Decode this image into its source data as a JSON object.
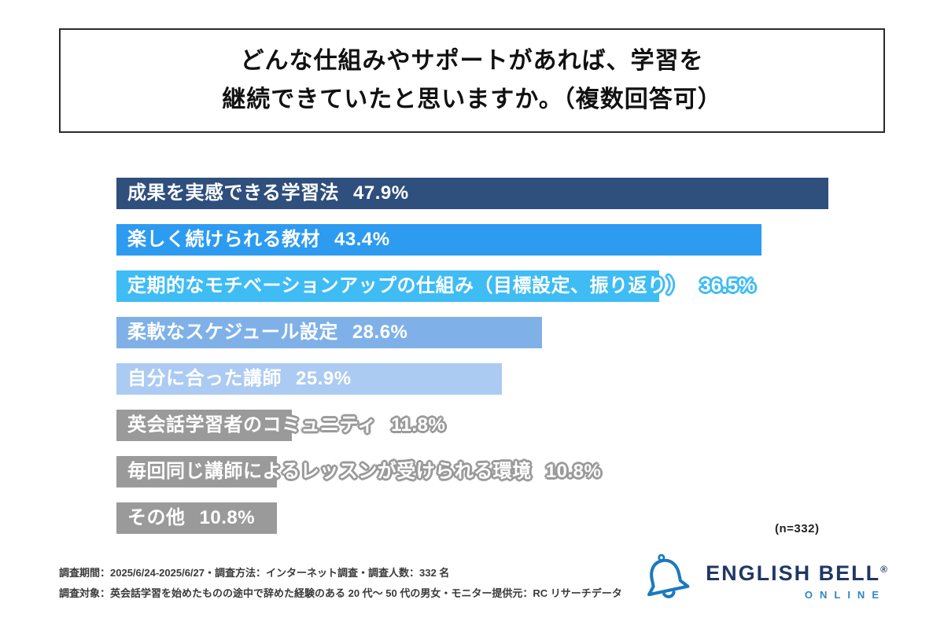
{
  "title": {
    "line1": "どんな仕組みやサポートがあれば、学習を",
    "line2": "継続できていたと思いますか。（複数回答可）"
  },
  "chart_data": {
    "type": "bar",
    "orientation": "horizontal",
    "title": "どんな仕組みやサポートがあれば、学習を継続できていたと思いますか。（複数回答可）",
    "categories": [
      "成果を実感できる学習法",
      "楽しく続けられる教材",
      "定期的なモチベーションアップの仕組み（目標設定、振り返り）",
      "柔軟なスケジュール設定",
      "自分に合った講師",
      "英会話学習者のコミュニティ",
      "毎回同じ講師によるレッスンが受けられる環境",
      "その他"
    ],
    "values": [
      47.9,
      43.4,
      36.5,
      28.6,
      25.9,
      11.8,
      10.8,
      10.8
    ],
    "value_labels": [
      "47.9%",
      "43.4%",
      "36.5%",
      "28.6%",
      "25.9%",
      "11.8%",
      "10.8%",
      "10.8%"
    ],
    "bar_colors": [
      "#2f4f7d",
      "#2d9bf0",
      "#3fbcf4",
      "#7fb1e8",
      "#accbf2",
      "#9a9a9a",
      "#9a9a9a",
      "#9a9a9a"
    ],
    "xlim": [
      0,
      50
    ],
    "grid": false,
    "legend": "none",
    "sample_label": "(n=332)"
  },
  "footer": {
    "line1": "調査期間：2025/6/24-2025/6/27・調査方法：インターネット調査・調査人数：332 名",
    "line2": "調査対象：英会話学習を始めたものの途中で辞めた経験のある 20 代～ 50 代の男女・モニター提供元：RC リサーチデータ"
  },
  "logo": {
    "brand": "ENGLISH BELL",
    "registered": "®",
    "subtitle": "ONLINE",
    "icon_color": "#1b79c0",
    "brand_text_color": "#1f3864",
    "subtitle_color": "#2e86c8"
  }
}
